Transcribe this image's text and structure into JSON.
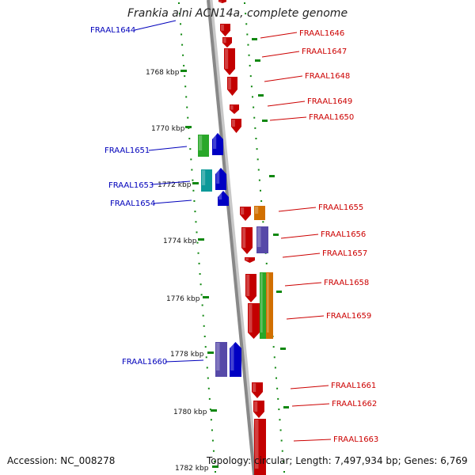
{
  "title": "Frankia alni ACN14a, complete genome",
  "accession": "Accession: NC_008278",
  "summary": "Topology: circular; Length: 7,497,934 bp; Genes: 6,769",
  "colors": {
    "red": "#ee0000",
    "blue": "#0000ee",
    "cyan": "#11bbbb",
    "green": "#33cc33",
    "orange": "#ff8800",
    "slate": "#6a5acd",
    "label_left": "#0000bb",
    "label_right": "#cc0000",
    "dots": "#118811"
  },
  "ticks": [
    {
      "label": "1768 kbp"
    },
    {
      "label": "1770 kbp"
    },
    {
      "label": "1772 kbp"
    },
    {
      "label": "1774 kbp"
    },
    {
      "label": "1776 kbp"
    },
    {
      "label": "1778 kbp"
    },
    {
      "label": "1780 kbp"
    },
    {
      "label": "1782 kbp"
    }
  ],
  "genes": [
    {
      "name": "FRAAL1644",
      "strand": "left"
    },
    {
      "name": "FRAAL1646",
      "strand": "right"
    },
    {
      "name": "FRAAL1647",
      "strand": "right"
    },
    {
      "name": "FRAAL1648",
      "strand": "right"
    },
    {
      "name": "FRAAL1649",
      "strand": "right"
    },
    {
      "name": "FRAAL1650",
      "strand": "right"
    },
    {
      "name": "FRAAL1651",
      "strand": "left"
    },
    {
      "name": "FRAAL1653",
      "strand": "left"
    },
    {
      "name": "FRAAL1654",
      "strand": "left"
    },
    {
      "name": "FRAAL1655",
      "strand": "right"
    },
    {
      "name": "FRAAL1656",
      "strand": "right"
    },
    {
      "name": "FRAAL1657",
      "strand": "right"
    },
    {
      "name": "FRAAL1658",
      "strand": "right"
    },
    {
      "name": "FRAAL1659",
      "strand": "right"
    },
    {
      "name": "FRAAL1660",
      "strand": "left"
    },
    {
      "name": "FRAAL1661",
      "strand": "right"
    },
    {
      "name": "FRAAL1662",
      "strand": "right"
    },
    {
      "name": "FRAAL1663",
      "strand": "right"
    }
  ]
}
